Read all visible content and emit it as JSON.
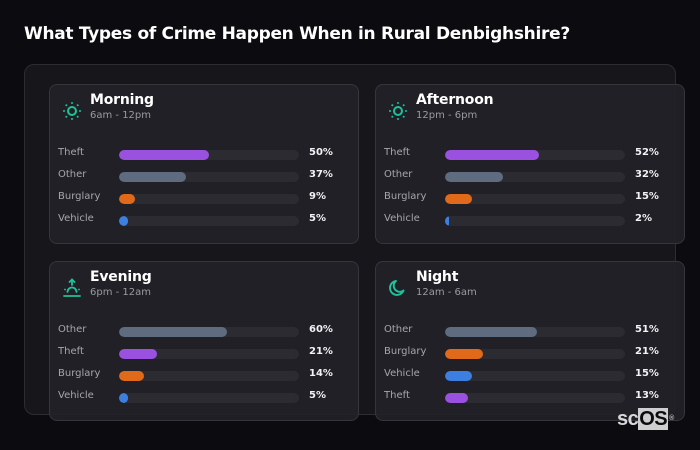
{
  "title": "What Types of Crime Happen When in Rural Denbighshire?",
  "colors": {
    "Theft": "#9b51e0",
    "Other": "#5f6b7e",
    "Burglary": "#e0691a",
    "Vehicle": "#3d7fe0",
    "icon": "#1fc29a"
  },
  "cards": [
    {
      "title": "Morning",
      "subtitle": "6am - 12pm",
      "icon": "sun-icon",
      "rows": [
        {
          "label": "Theft",
          "value": 50,
          "display": "50%"
        },
        {
          "label": "Other",
          "value": 37,
          "display": "37%"
        },
        {
          "label": "Burglary",
          "value": 9,
          "display": "9%"
        },
        {
          "label": "Vehicle",
          "value": 5,
          "display": "5%"
        }
      ]
    },
    {
      "title": "Afternoon",
      "subtitle": "12pm - 6pm",
      "icon": "sun-icon",
      "rows": [
        {
          "label": "Theft",
          "value": 52,
          "display": "52%"
        },
        {
          "label": "Other",
          "value": 32,
          "display": "32%"
        },
        {
          "label": "Burglary",
          "value": 15,
          "display": "15%"
        },
        {
          "label": "Vehicle",
          "value": 2,
          "display": "2%"
        }
      ]
    },
    {
      "title": "Evening",
      "subtitle": "6pm - 12am",
      "icon": "sunset-icon",
      "rows": [
        {
          "label": "Other",
          "value": 60,
          "display": "60%"
        },
        {
          "label": "Theft",
          "value": 21,
          "display": "21%"
        },
        {
          "label": "Burglary",
          "value": 14,
          "display": "14%"
        },
        {
          "label": "Vehicle",
          "value": 5,
          "display": "5%"
        }
      ]
    },
    {
      "title": "Night",
      "subtitle": "12am - 6am",
      "icon": "moon-icon",
      "rows": [
        {
          "label": "Other",
          "value": 51,
          "display": "51%"
        },
        {
          "label": "Burglary",
          "value": 21,
          "display": "21%"
        },
        {
          "label": "Vehicle",
          "value": 15,
          "display": "15%"
        },
        {
          "label": "Theft",
          "value": 13,
          "display": "13%"
        }
      ]
    }
  ],
  "brand": {
    "sc": "sc",
    "os": "OS",
    "reg": "®"
  },
  "chart_data": [
    {
      "type": "bar",
      "title": "Morning",
      "subtitle": "6am - 12pm",
      "categories": [
        "Theft",
        "Other",
        "Burglary",
        "Vehicle"
      ],
      "values": [
        50,
        37,
        9,
        5
      ],
      "unit": "%",
      "xlim": [
        0,
        100
      ],
      "orientation": "horizontal"
    },
    {
      "type": "bar",
      "title": "Afternoon",
      "subtitle": "12pm - 6pm",
      "categories": [
        "Theft",
        "Other",
        "Burglary",
        "Vehicle"
      ],
      "values": [
        52,
        32,
        15,
        2
      ],
      "unit": "%",
      "xlim": [
        0,
        100
      ],
      "orientation": "horizontal"
    },
    {
      "type": "bar",
      "title": "Evening",
      "subtitle": "6pm - 12am",
      "categories": [
        "Other",
        "Theft",
        "Burglary",
        "Vehicle"
      ],
      "values": [
        60,
        21,
        14,
        5
      ],
      "unit": "%",
      "xlim": [
        0,
        100
      ],
      "orientation": "horizontal"
    },
    {
      "type": "bar",
      "title": "Night",
      "subtitle": "12am - 6am",
      "categories": [
        "Other",
        "Burglary",
        "Vehicle",
        "Theft"
      ],
      "values": [
        51,
        21,
        15,
        13
      ],
      "unit": "%",
      "xlim": [
        0,
        100
      ],
      "orientation": "horizontal"
    }
  ]
}
